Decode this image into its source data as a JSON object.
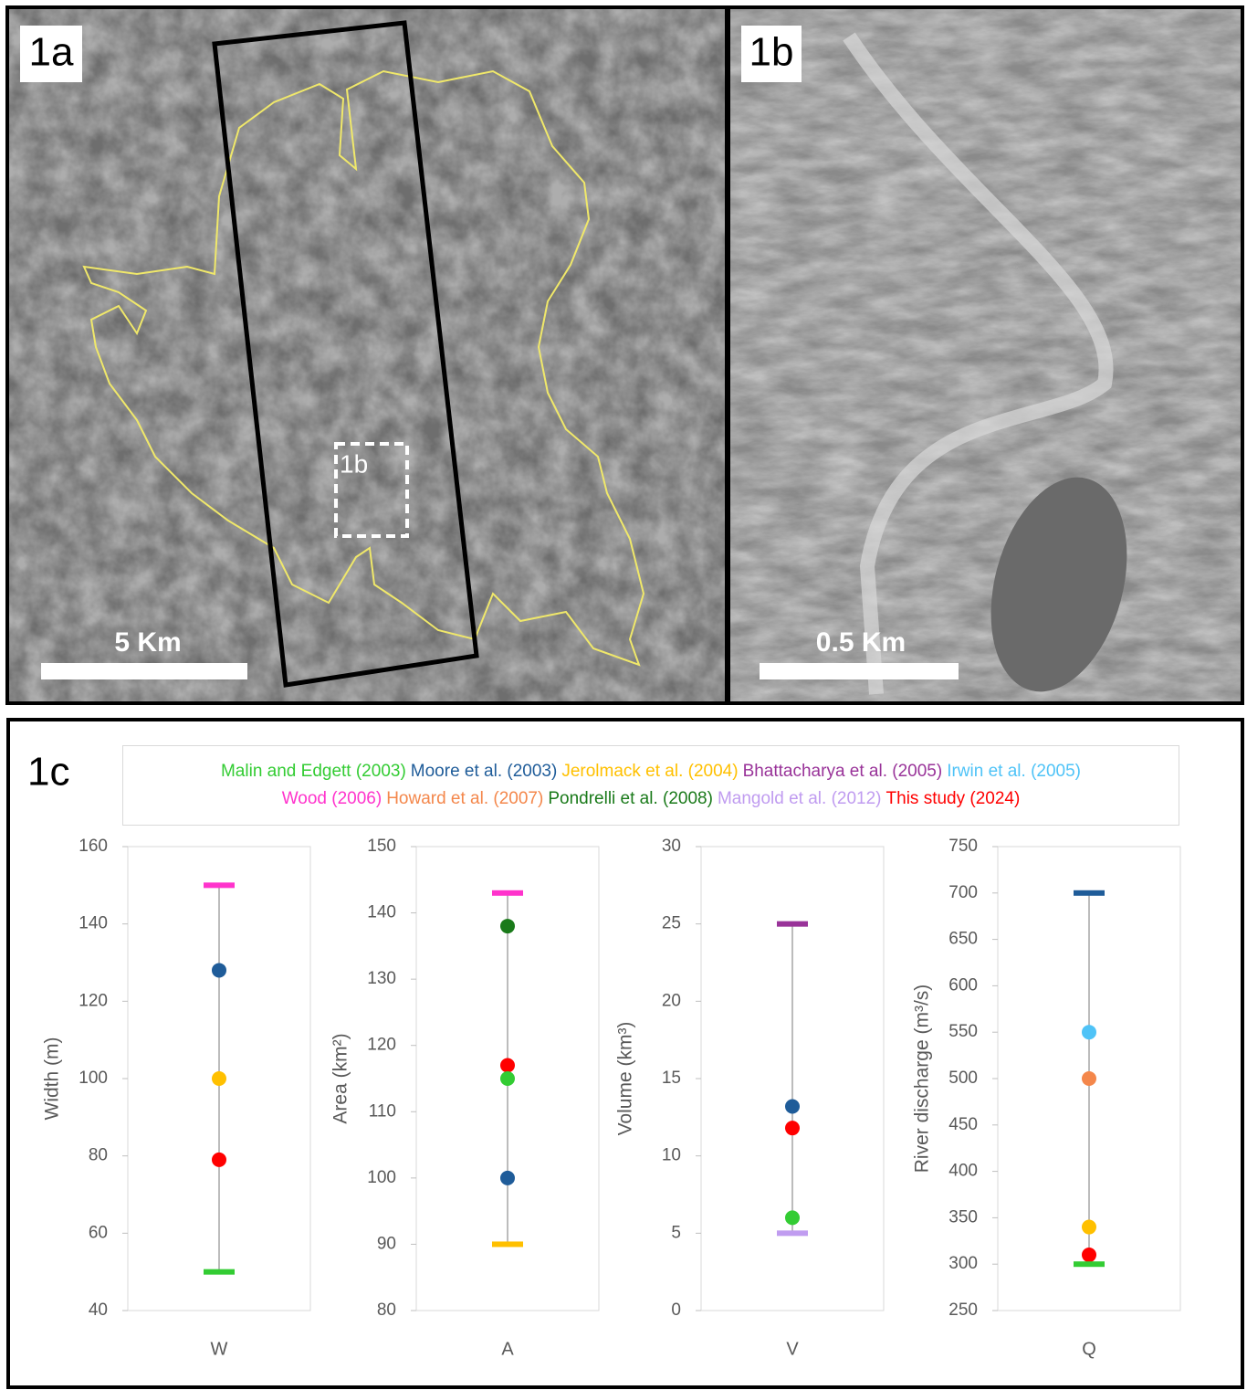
{
  "panels": [
    {
      "label": "1a",
      "scale_bar": "5 Km",
      "inset_label": "1b"
    },
    {
      "label": "1b",
      "scale_bar": "0.5 Km"
    }
  ],
  "chart_panel_label": "1c",
  "legend": [
    [
      {
        "name": "Malin and Edgett (2003)",
        "color": "#33cc33"
      },
      {
        "name": "Moore et al. (2003)",
        "color": "#1f5c99"
      },
      {
        "name": "Jerolmack et al. (2004)",
        "color": "#ffc000"
      },
      {
        "name": "Bhattacharya et al. (2005)",
        "color": "#993399"
      },
      {
        "name": "Irwin et al. (2005)",
        "color": "#4fc3f7"
      }
    ],
    [
      {
        "name": "Wood (2006)",
        "color": "#ff33cc"
      },
      {
        "name": "Howard et al. (2007)",
        "color": "#f4874b"
      },
      {
        "name": "Pondrelli et al. (2008)",
        "color": "#1a7a1a"
      },
      {
        "name": "Mangold et al. (2012)",
        "color": "#c09cf0"
      },
      {
        "name": "This study (2024)",
        "color": "#ff0000"
      }
    ]
  ],
  "chart_data": [
    {
      "type": "scatter",
      "categories": [
        "W"
      ],
      "y_label": "Width (m)",
      "ylim": [
        40,
        160
      ],
      "yticks": [
        40,
        60,
        80,
        100,
        120,
        140,
        160
      ],
      "series": [
        {
          "color": "#ff33cc",
          "marker": "dash",
          "values": [
            150
          ]
        },
        {
          "color": "#1f5c99",
          "marker": "circle",
          "values": [
            128
          ]
        },
        {
          "color": "#ffc000",
          "marker": "circle",
          "values": [
            100
          ]
        },
        {
          "color": "#ff0000",
          "marker": "circle",
          "values": [
            79
          ]
        },
        {
          "color": "#33cc33",
          "marker": "dash",
          "values": [
            50
          ]
        }
      ]
    },
    {
      "type": "scatter",
      "categories": [
        "A"
      ],
      "y_label": "Area (km²)",
      "ylim": [
        80,
        150
      ],
      "yticks": [
        80,
        90,
        100,
        110,
        120,
        130,
        140,
        150
      ],
      "series": [
        {
          "color": "#ff33cc",
          "marker": "dash",
          "values": [
            143
          ]
        },
        {
          "color": "#1a7a1a",
          "marker": "circle",
          "values": [
            138
          ]
        },
        {
          "color": "#ff0000",
          "marker": "circle",
          "values": [
            117
          ]
        },
        {
          "color": "#33cc33",
          "marker": "circle",
          "values": [
            115
          ]
        },
        {
          "color": "#1f5c99",
          "marker": "circle",
          "values": [
            100
          ]
        },
        {
          "color": "#ffc000",
          "marker": "dash",
          "values": [
            90
          ]
        }
      ]
    },
    {
      "type": "scatter",
      "categories": [
        "V"
      ],
      "y_label": "Volume (km³)",
      "ylim": [
        0,
        30
      ],
      "yticks": [
        0,
        5,
        10,
        15,
        20,
        25,
        30
      ],
      "series": [
        {
          "color": "#993399",
          "marker": "dash",
          "values": [
            25
          ]
        },
        {
          "color": "#1f5c99",
          "marker": "circle",
          "values": [
            13.2
          ]
        },
        {
          "color": "#ff0000",
          "marker": "circle",
          "values": [
            11.8
          ]
        },
        {
          "color": "#33cc33",
          "marker": "circle",
          "values": [
            6
          ]
        },
        {
          "color": "#c09cf0",
          "marker": "dash",
          "values": [
            5
          ]
        }
      ]
    },
    {
      "type": "scatter",
      "categories": [
        "Q"
      ],
      "y_label": "River discharge (m³/s)",
      "ylim": [
        250,
        750
      ],
      "yticks": [
        250,
        300,
        350,
        400,
        450,
        500,
        550,
        600,
        650,
        700,
        750
      ],
      "series": [
        {
          "color": "#1f5c99",
          "marker": "dash",
          "values": [
            700
          ]
        },
        {
          "color": "#4fc3f7",
          "marker": "circle",
          "values": [
            550
          ]
        },
        {
          "color": "#f4874b",
          "marker": "circle",
          "values": [
            500
          ]
        },
        {
          "color": "#ffc000",
          "marker": "circle",
          "values": [
            340
          ]
        },
        {
          "color": "#ff0000",
          "marker": "circle",
          "values": [
            310
          ]
        },
        {
          "color": "#33cc33",
          "marker": "dash",
          "values": [
            300
          ]
        }
      ]
    }
  ]
}
